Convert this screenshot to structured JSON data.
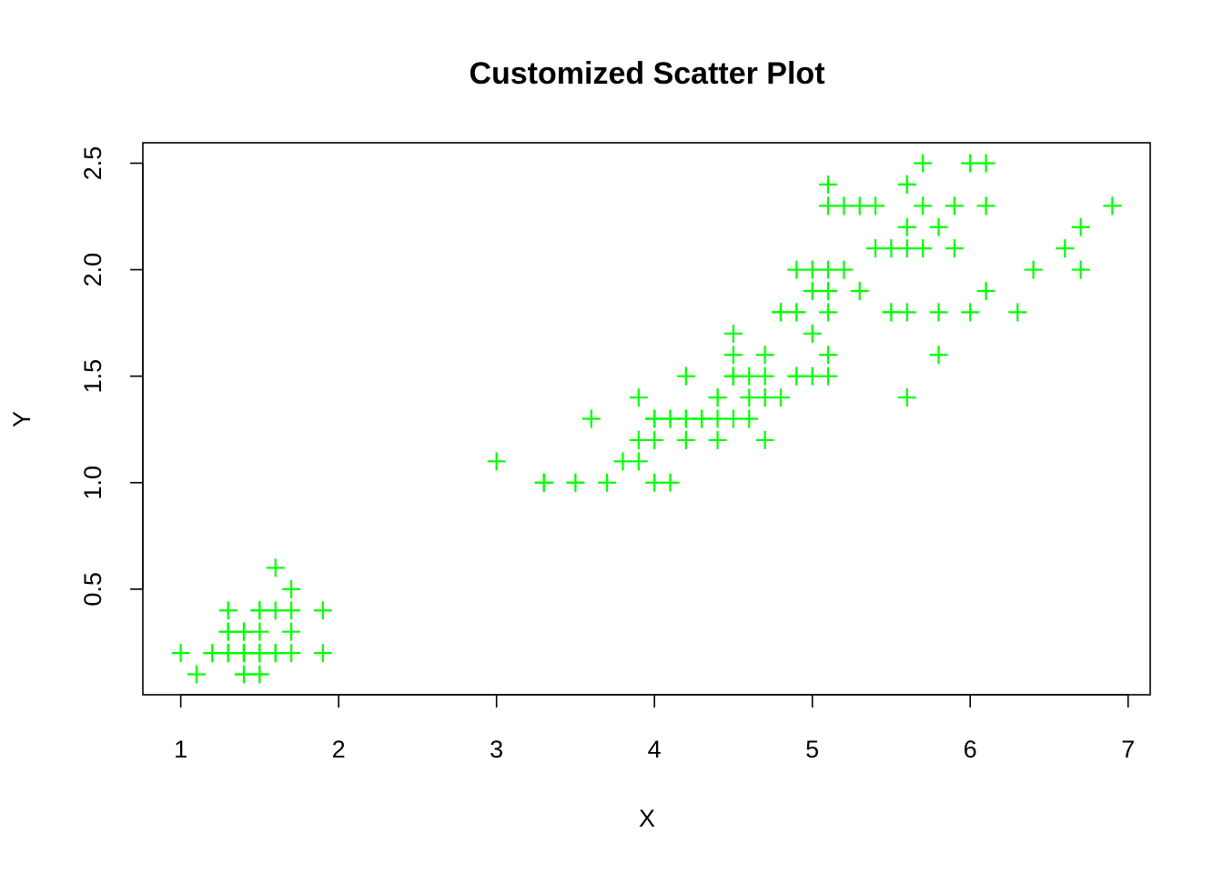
{
  "chart_data": {
    "type": "scatter",
    "title": "Customized Scatter Plot",
    "xlabel": "X",
    "ylabel": "Y",
    "xlim": [
      0.76,
      7.14
    ],
    "ylim": [
      0.004,
      2.596
    ],
    "xticks": [
      1,
      2,
      3,
      4,
      5,
      6,
      7
    ],
    "yticks": [
      0.5,
      1.0,
      1.5,
      2.0,
      2.5
    ],
    "xtick_labels": [
      "1",
      "2",
      "3",
      "4",
      "5",
      "6",
      "7"
    ],
    "ytick_labels": [
      "0.5",
      "1.0",
      "1.5",
      "2.0",
      "2.5"
    ],
    "grid": false,
    "legend": false,
    "marker": "plus",
    "color": "#00ff00",
    "points": [
      [
        1.4,
        0.2
      ],
      [
        1.4,
        0.2
      ],
      [
        1.3,
        0.2
      ],
      [
        1.5,
        0.2
      ],
      [
        1.4,
        0.2
      ],
      [
        1.7,
        0.4
      ],
      [
        1.4,
        0.3
      ],
      [
        1.5,
        0.2
      ],
      [
        1.4,
        0.2
      ],
      [
        1.5,
        0.1
      ],
      [
        1.5,
        0.2
      ],
      [
        1.6,
        0.2
      ],
      [
        1.4,
        0.1
      ],
      [
        1.1,
        0.1
      ],
      [
        1.2,
        0.2
      ],
      [
        1.5,
        0.4
      ],
      [
        1.3,
        0.4
      ],
      [
        1.4,
        0.3
      ],
      [
        1.7,
        0.3
      ],
      [
        1.5,
        0.3
      ],
      [
        1.7,
        0.2
      ],
      [
        1.5,
        0.4
      ],
      [
        1.0,
        0.2
      ],
      [
        1.7,
        0.5
      ],
      [
        1.9,
        0.2
      ],
      [
        1.6,
        0.2
      ],
      [
        1.6,
        0.4
      ],
      [
        1.5,
        0.2
      ],
      [
        1.4,
        0.2
      ],
      [
        1.6,
        0.2
      ],
      [
        1.6,
        0.2
      ],
      [
        1.5,
        0.4
      ],
      [
        1.5,
        0.1
      ],
      [
        1.4,
        0.2
      ],
      [
        1.5,
        0.2
      ],
      [
        1.2,
        0.2
      ],
      [
        1.3,
        0.2
      ],
      [
        1.4,
        0.1
      ],
      [
        1.3,
        0.2
      ],
      [
        1.5,
        0.2
      ],
      [
        1.3,
        0.3
      ],
      [
        1.3,
        0.3
      ],
      [
        1.3,
        0.2
      ],
      [
        1.6,
        0.6
      ],
      [
        1.9,
        0.4
      ],
      [
        1.4,
        0.3
      ],
      [
        1.6,
        0.2
      ],
      [
        1.4,
        0.2
      ],
      [
        1.5,
        0.2
      ],
      [
        1.4,
        0.2
      ],
      [
        4.7,
        1.4
      ],
      [
        4.5,
        1.5
      ],
      [
        4.9,
        1.5
      ],
      [
        4.0,
        1.3
      ],
      [
        4.6,
        1.5
      ],
      [
        4.5,
        1.3
      ],
      [
        4.7,
        1.6
      ],
      [
        3.3,
        1.0
      ],
      [
        4.6,
        1.3
      ],
      [
        3.9,
        1.4
      ],
      [
        3.5,
        1.0
      ],
      [
        4.2,
        1.5
      ],
      [
        4.0,
        1.0
      ],
      [
        4.7,
        1.4
      ],
      [
        3.6,
        1.3
      ],
      [
        4.4,
        1.4
      ],
      [
        4.5,
        1.5
      ],
      [
        4.1,
        1.0
      ],
      [
        4.5,
        1.5
      ],
      [
        3.9,
        1.1
      ],
      [
        4.8,
        1.8
      ],
      [
        4.0,
        1.3
      ],
      [
        4.9,
        1.5
      ],
      [
        4.7,
        1.2
      ],
      [
        4.3,
        1.3
      ],
      [
        4.4,
        1.4
      ],
      [
        4.8,
        1.4
      ],
      [
        5.0,
        1.7
      ],
      [
        4.5,
        1.5
      ],
      [
        3.5,
        1.0
      ],
      [
        3.8,
        1.1
      ],
      [
        3.7,
        1.0
      ],
      [
        3.9,
        1.2
      ],
      [
        5.1,
        1.6
      ],
      [
        4.5,
        1.5
      ],
      [
        4.5,
        1.6
      ],
      [
        4.7,
        1.5
      ],
      [
        4.4,
        1.3
      ],
      [
        4.1,
        1.3
      ],
      [
        4.0,
        1.3
      ],
      [
        4.4,
        1.2
      ],
      [
        4.6,
        1.4
      ],
      [
        4.0,
        1.2
      ],
      [
        3.3,
        1.0
      ],
      [
        4.2,
        1.3
      ],
      [
        4.2,
        1.2
      ],
      [
        4.2,
        1.3
      ],
      [
        4.3,
        1.3
      ],
      [
        3.0,
        1.1
      ],
      [
        4.1,
        1.3
      ],
      [
        6.0,
        2.5
      ],
      [
        5.1,
        1.9
      ],
      [
        5.9,
        2.1
      ],
      [
        5.6,
        1.8
      ],
      [
        5.8,
        2.2
      ],
      [
        6.6,
        2.1
      ],
      [
        4.5,
        1.7
      ],
      [
        6.3,
        1.8
      ],
      [
        5.8,
        1.8
      ],
      [
        6.1,
        2.5
      ],
      [
        5.1,
        2.0
      ],
      [
        5.3,
        1.9
      ],
      [
        5.5,
        2.1
      ],
      [
        5.0,
        2.0
      ],
      [
        5.1,
        2.4
      ],
      [
        5.3,
        2.3
      ],
      [
        5.5,
        1.8
      ],
      [
        6.7,
        2.2
      ],
      [
        6.9,
        2.3
      ],
      [
        5.0,
        1.5
      ],
      [
        5.7,
        2.3
      ],
      [
        4.9,
        2.0
      ],
      [
        6.7,
        2.0
      ],
      [
        4.9,
        1.8
      ],
      [
        5.7,
        2.1
      ],
      [
        6.0,
        1.8
      ],
      [
        4.8,
        1.8
      ],
      [
        4.9,
        1.8
      ],
      [
        5.6,
        2.1
      ],
      [
        5.8,
        1.6
      ],
      [
        6.1,
        1.9
      ],
      [
        6.4,
        2.0
      ],
      [
        5.6,
        2.2
      ],
      [
        5.1,
        1.5
      ],
      [
        5.6,
        1.4
      ],
      [
        6.1,
        2.3
      ],
      [
        5.6,
        2.4
      ],
      [
        5.5,
        1.8
      ],
      [
        4.8,
        1.8
      ],
      [
        5.4,
        2.1
      ],
      [
        5.6,
        2.4
      ],
      [
        5.1,
        2.3
      ],
      [
        5.1,
        1.9
      ],
      [
        5.9,
        2.3
      ],
      [
        5.7,
        2.5
      ],
      [
        5.2,
        2.3
      ],
      [
        5.0,
        1.9
      ],
      [
        5.2,
        2.0
      ],
      [
        5.4,
        2.3
      ],
      [
        5.1,
        1.8
      ]
    ]
  }
}
